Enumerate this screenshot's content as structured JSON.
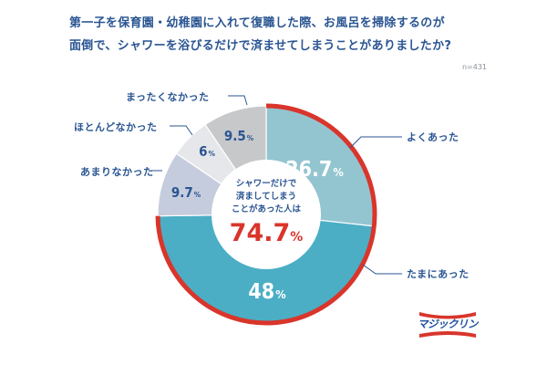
{
  "title_line1": "第一子を保育園・幼稚園に入れて復職した際、お風呂を掃除するのが",
  "title_line2": "面倒で、シャワーを浴びるだけで済ませてしまうことがありましたか?",
  "sample_size": "n=431",
  "center": {
    "line1": "シャワーだけで",
    "line2": "済ましてしまう",
    "line3": "ことがあった人は",
    "value": "74.7",
    "unit": "%"
  },
  "logo_text": "マジックリン",
  "colors": {
    "often": "#93c5d1",
    "sometimes": "#4baec5",
    "rarely": "#c5ccdd",
    "almost_never": "#e6e7ea",
    "never": "#c7c8ca",
    "highlight_ring": "#d9352b",
    "text": "#2a5592"
  },
  "chart_data": {
    "type": "pie",
    "title": "第一子を保育園・幼稚園に入れて復職した際、お風呂を掃除するのが面倒で、シャワーを浴びるだけで済ませてしまうことがありましたか?",
    "note": "n=431",
    "categories": [
      "よくあった",
      "たまにあった",
      "あまりなかった",
      "ほとんどなかった",
      "まったくなかった"
    ],
    "values": [
      26.7,
      48,
      9.7,
      6,
      9.5
    ],
    "labels": [
      "26.7",
      "48",
      "9.7",
      "6",
      "9.5"
    ],
    "unit": "%",
    "donut": true,
    "center_annotation": "シャワーだけで済ましてしまうことがあった人は 74.7%",
    "highlighted_total": 74.7,
    "highlighted_categories": [
      "よくあった",
      "たまにあった"
    ]
  }
}
